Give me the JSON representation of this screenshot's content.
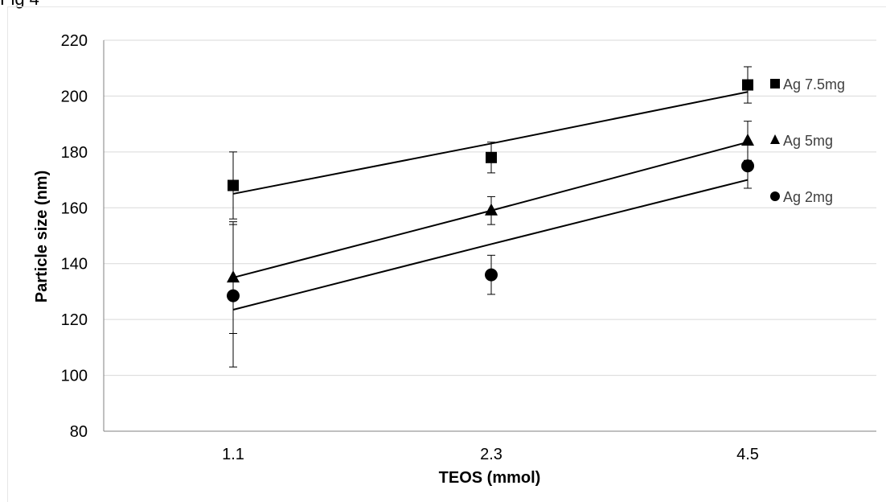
{
  "figure_label": "Fig 4",
  "chart_data": {
    "type": "scatter",
    "title": "",
    "xlabel": "TEOS (mmol)",
    "ylabel": "Particle size (nm)",
    "categories": [
      "1.1",
      "2.3",
      "4.5"
    ],
    "ylim": [
      80,
      220
    ],
    "yticks": [
      80,
      100,
      120,
      140,
      160,
      180,
      200,
      220
    ],
    "grid": true,
    "legend_placement": "right",
    "series": [
      {
        "name": "Ag 7.5mg",
        "marker": "square",
        "values": [
          168,
          178,
          204
        ],
        "error": [
          [
            12,
            12
          ],
          [
            5.5,
            5.5
          ],
          [
            6.5,
            6.5
          ]
        ],
        "trendline": [
          165,
          183,
          201.5
        ]
      },
      {
        "name": "Ag 5mg",
        "marker": "triangle",
        "values": [
          135,
          159,
          184
        ],
        "error": [
          [
            20,
            20
          ],
          [
            5,
            5
          ],
          [
            7,
            7
          ]
        ],
        "trendline": [
          135,
          159,
          183.5
        ]
      },
      {
        "name": "Ag 2mg",
        "marker": "circle",
        "values": [
          128.5,
          136,
          175
        ],
        "error": [
          [
            25.5,
            25.5
          ],
          [
            7,
            7
          ],
          [
            8,
            8
          ]
        ],
        "trendline": [
          123.5,
          147,
          170
        ]
      }
    ]
  }
}
